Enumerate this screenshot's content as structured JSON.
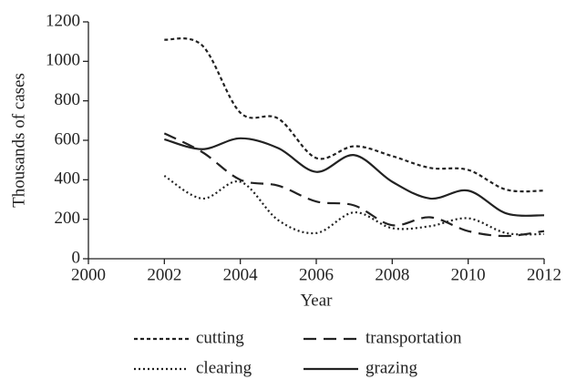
{
  "chart_data": {
    "type": "line",
    "x_label": "Year",
    "y_label": "Thousands of cases",
    "x": [
      2002,
      2003,
      2004,
      2005,
      2006,
      2007,
      2008,
      2009,
      2010,
      2011,
      2012
    ],
    "series": [
      {
        "name": "cutting",
        "color": "#222222",
        "dash": "4,3",
        "values": [
          1110,
          1080,
          740,
          710,
          510,
          570,
          520,
          460,
          450,
          350,
          345
        ]
      },
      {
        "name": "transportation",
        "color": "#222222",
        "dash": "14,8",
        "values": [
          635,
          540,
          400,
          370,
          290,
          270,
          170,
          210,
          140,
          115,
          140
        ]
      },
      {
        "name": "clearing",
        "color": "#222222",
        "dash": "2,3",
        "values": [
          420,
          305,
          390,
          195,
          130,
          235,
          155,
          165,
          205,
          130,
          125
        ]
      },
      {
        "name": "grazing",
        "color": "#222222",
        "dash": "none",
        "values": [
          605,
          555,
          610,
          560,
          440,
          525,
          390,
          305,
          345,
          230,
          220
        ]
      }
    ],
    "xlim": [
      2000,
      2012
    ],
    "xticks": [
      2000,
      2002,
      2004,
      2006,
      2008,
      2010,
      2012
    ],
    "ylim": [
      0,
      1200
    ],
    "yticks": [
      0,
      200,
      400,
      600,
      800,
      1000,
      1200
    ],
    "grid": false,
    "legend": "bottom"
  }
}
